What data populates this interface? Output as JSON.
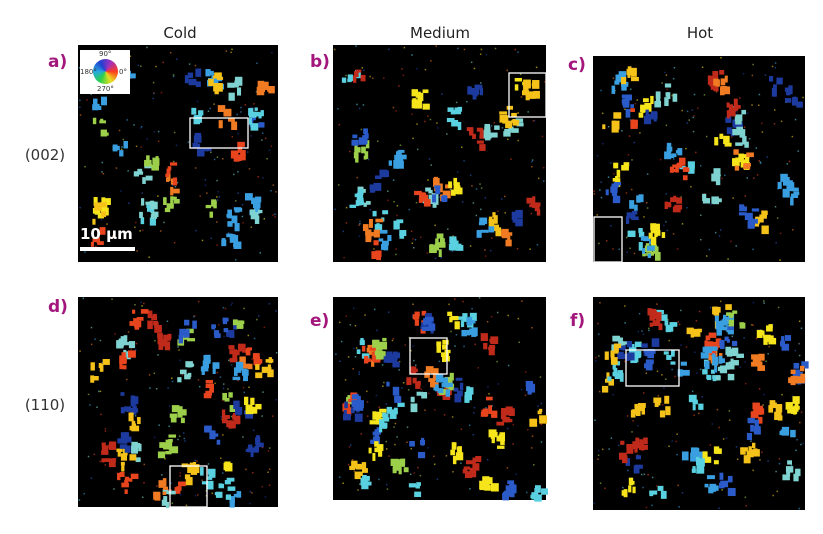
{
  "columns": [
    "Cold",
    "Medium",
    "Hot"
  ],
  "rows": [
    "(002)",
    "(110)"
  ],
  "panels": [
    "a)",
    "b)",
    "c)",
    "d)",
    "e)",
    "f)"
  ],
  "scale_bar": "10 µm",
  "color_wheel": {
    "top": "90°",
    "left": "180°",
    "right": "0°",
    "bottom": "270°"
  }
}
